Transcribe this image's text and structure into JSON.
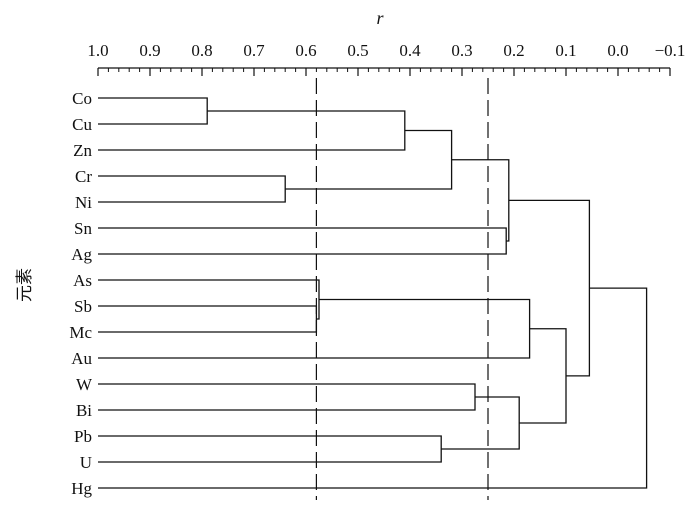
{
  "chart_data": {
    "type": "dendrogram",
    "xlabel": "r",
    "ylabel": "元素",
    "xlim": [
      1.0,
      -0.1
    ],
    "x_ticks": [
      "1.0",
      "0.9",
      "0.8",
      "0.7",
      "0.6",
      "0.5",
      "0.4",
      "0.3",
      "0.2",
      "0.1",
      "0.0",
      "−0.1"
    ],
    "leaves": [
      "Co",
      "Cu",
      "Zn",
      "Cr",
      "Ni",
      "Sn",
      "Ag",
      "As",
      "Sb",
      "Mc",
      "Au",
      "W",
      "Bi",
      "Pb",
      "U",
      "Hg"
    ],
    "thresholds": [
      0.58,
      0.25
    ],
    "merges": [
      {
        "left": "Co",
        "right": "Cu",
        "r": 0.79
      },
      {
        "left": "Sb",
        "right": "Mc",
        "r": 0.58
      },
      {
        "left": "As",
        "right": "Sb+Mc",
        "r": 0.575
      },
      {
        "left": "Cr",
        "right": "Ni",
        "r": 0.64
      },
      {
        "left": "Co+Cu",
        "right": "Zn",
        "r": 0.41
      },
      {
        "left": "Pb",
        "right": "U",
        "r": 0.34
      },
      {
        "left": "Co+Cu+Zn",
        "right": "Cr+Ni",
        "r": 0.32
      },
      {
        "left": "W",
        "right": "Bi",
        "r": 0.275
      },
      {
        "left": "Sn",
        "right": "Ag",
        "r": 0.215
      },
      {
        "left": "Co–Ni",
        "right": "Sn+Ag",
        "r": 0.21
      },
      {
        "left": "W+Bi",
        "right": "Pb+U",
        "r": 0.19
      },
      {
        "left": "As+Sb+Mc",
        "right": "Au",
        "r": 0.17
      },
      {
        "left": "As–Au",
        "right": "W–U",
        "r": 0.1
      },
      {
        "left": "Co–Ag",
        "right": "As–U",
        "r": 0.055
      },
      {
        "left": "Co–U",
        "right": "Hg",
        "r": -0.055
      }
    ]
  }
}
